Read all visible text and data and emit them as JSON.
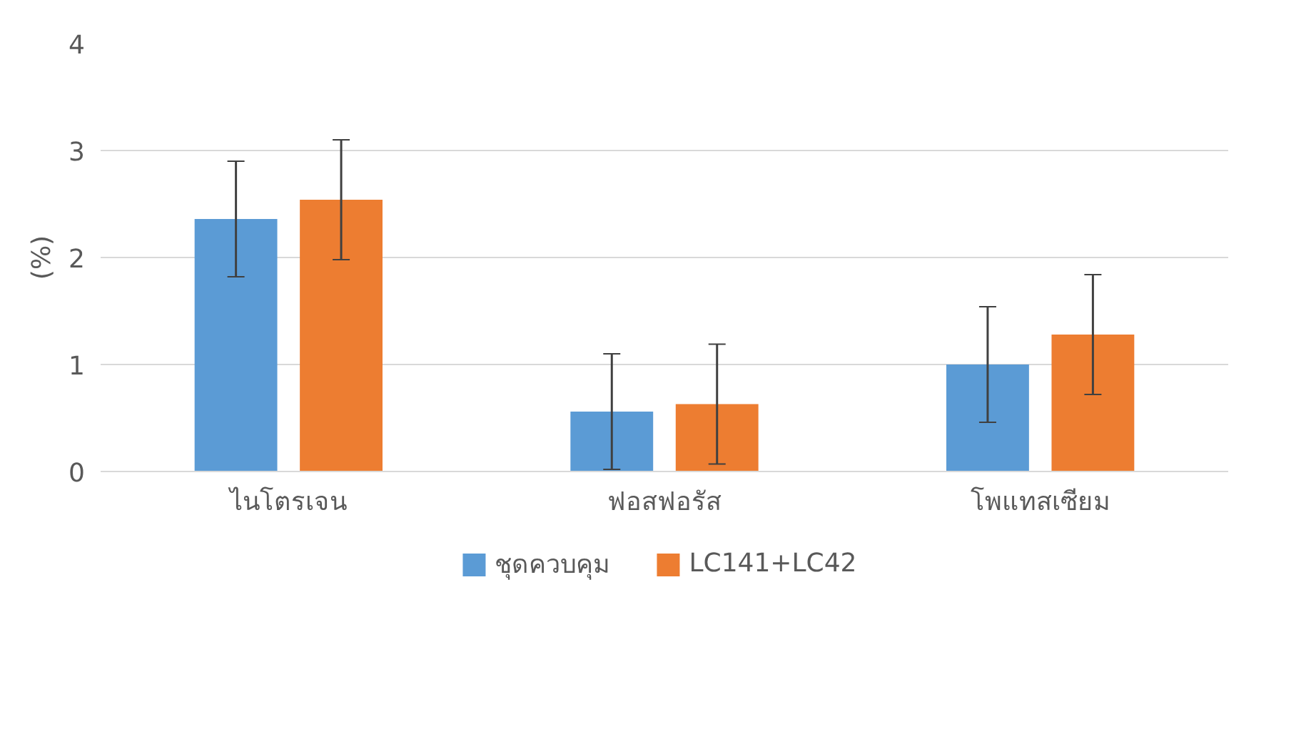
{
  "chart_data": {
    "type": "bar",
    "ylabel": "(%)",
    "categories": [
      "ไนโตรเจน",
      "ฟอสฟอรัส",
      "โพแทสเซียม"
    ],
    "series": [
      {
        "name": "ชุดควบคุม",
        "color": "#5b9bd5",
        "values": [
          2.36,
          0.56,
          1.0
        ],
        "errors": [
          0.54,
          0.54,
          0.54
        ]
      },
      {
        "name": "LC141+LC42",
        "color": "#ed7d31",
        "values": [
          2.54,
          0.63,
          1.28
        ],
        "errors": [
          0.56,
          0.56,
          0.56
        ]
      }
    ],
    "ylim": [
      0,
      4
    ],
    "yticks": [
      0,
      1,
      2,
      3,
      4
    ],
    "grid": "y",
    "legend": "bottom"
  }
}
